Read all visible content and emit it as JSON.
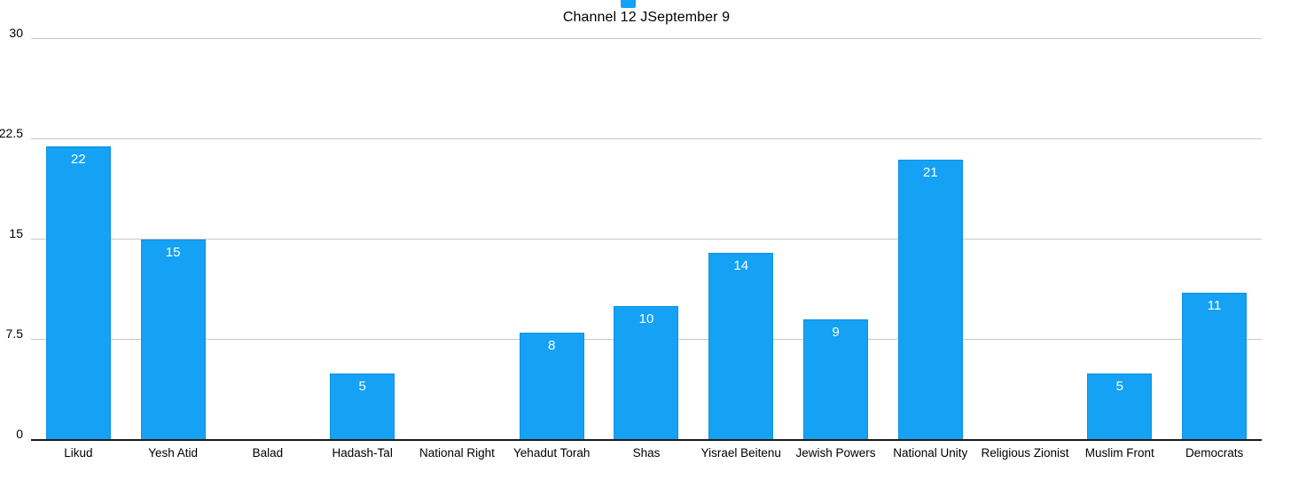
{
  "chart": {
    "title": "Channel 12 JSeptember 9"
  },
  "chart_data": {
    "type": "bar",
    "title": "Channel 12 JSeptember 9",
    "categories": [
      "Likud",
      "Yesh Atid",
      "Balad",
      "Hadash-Tal",
      "National Right",
      "Yehadut Torah",
      "Shas",
      "Yisrael Beitenu",
      "Jewish Powers",
      "National Unity",
      "Religious Zionist",
      "Muslim Front",
      "Democrats"
    ],
    "values": [
      22,
      15,
      0,
      5,
      0,
      8,
      10,
      14,
      9,
      21,
      0,
      5,
      11
    ],
    "xlabel": "",
    "ylabel": "",
    "ylim": [
      0,
      30
    ],
    "yticks": [
      0,
      7.5,
      15,
      22.5,
      30
    ],
    "grid": true,
    "legend_position": "top-center",
    "value_label_style": "inside-top-white",
    "colors": {
      "bar_fill": "#15A2F4",
      "bar_border": "#0D91E4",
      "gridline": "#C7C7C7",
      "axis_line": "#1A1A1A",
      "value_label": "#FFFFFF",
      "text": "#000000"
    }
  }
}
